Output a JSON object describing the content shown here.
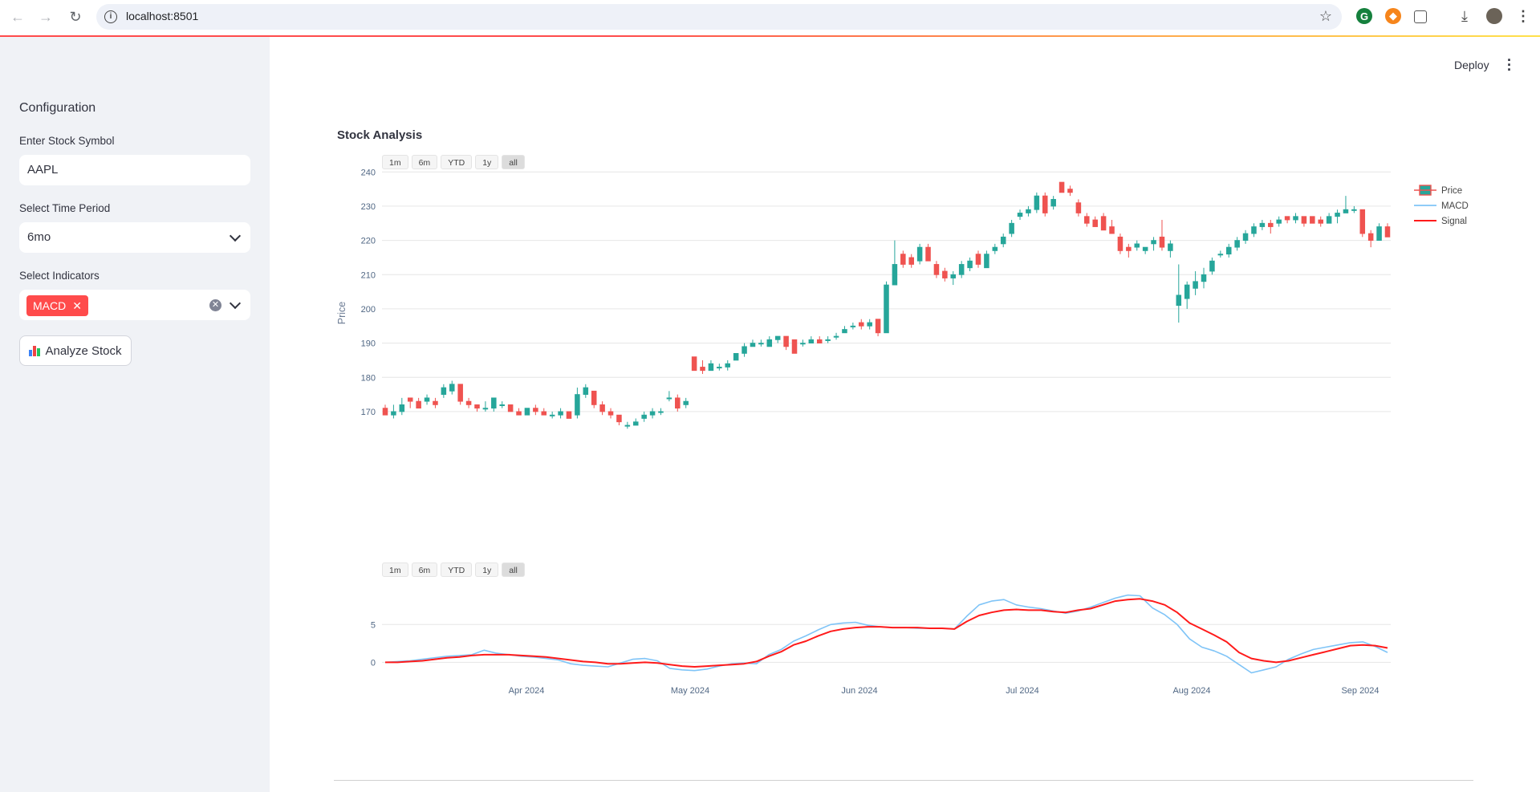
{
  "browser": {
    "url": "localhost:8501",
    "icons": [
      "back-icon",
      "forward-icon",
      "reload-icon",
      "info-icon",
      "star-icon",
      "grammarly-icon",
      "metamask-icon",
      "extensions-icon",
      "download-icon",
      "profile-avatar",
      "menu-icon"
    ]
  },
  "header": {
    "deploy_label": "Deploy"
  },
  "sidebar": {
    "title": "Configuration",
    "symbol_label": "Enter Stock Symbol",
    "symbol_value": "AAPL",
    "period_label": "Select Time Period",
    "period_value": "6mo",
    "indicators_label": "Select Indicators",
    "indicators_selected": [
      "MACD"
    ],
    "analyze_label": "Analyze Stock"
  },
  "main": {
    "title": "Stock Analysis"
  },
  "range_buttons": [
    "1m",
    "6m",
    "YTD",
    "1y",
    "all"
  ],
  "active_range": "all",
  "colors": {
    "accent": "#ff4b4b",
    "up": "#26a69a",
    "down": "#ef5350",
    "macd": "#7fc4f7",
    "signal": "#ff1a1a"
  },
  "chart_data": [
    {
      "type": "candlestick",
      "ylabel": "Price",
      "ylim": [
        166,
        241
      ],
      "yticks": [
        170,
        180,
        190,
        200,
        210,
        220,
        230,
        240
      ],
      "legend": [
        "Price",
        "MACD",
        "Signal"
      ],
      "legend_position": "top-right",
      "grid": true,
      "candles": [
        {
          "o": 171,
          "h": 172,
          "l": 169,
          "c": 169
        },
        {
          "o": 169,
          "h": 172,
          "l": 168,
          "c": 170
        },
        {
          "o": 170,
          "h": 174,
          "l": 169,
          "c": 172
        },
        {
          "o": 174,
          "h": 174,
          "l": 171,
          "c": 173
        },
        {
          "o": 173,
          "h": 174,
          "l": 171,
          "c": 171
        },
        {
          "o": 173,
          "h": 175,
          "l": 172,
          "c": 174
        },
        {
          "o": 173,
          "h": 174,
          "l": 171,
          "c": 172
        },
        {
          "o": 175,
          "h": 178,
          "l": 174,
          "c": 177
        },
        {
          "o": 176,
          "h": 179,
          "l": 175,
          "c": 178
        },
        {
          "o": 178,
          "h": 178,
          "l": 172,
          "c": 173
        },
        {
          "o": 173,
          "h": 174,
          "l": 171,
          "c": 172
        },
        {
          "o": 172,
          "h": 172,
          "l": 170,
          "c": 171
        },
        {
          "o": 171,
          "h": 173,
          "l": 170,
          "c": 171
        },
        {
          "o": 171,
          "h": 174,
          "l": 170,
          "c": 174
        },
        {
          "o": 172,
          "h": 173,
          "l": 171,
          "c": 172
        },
        {
          "o": 172,
          "h": 172,
          "l": 170,
          "c": 170
        },
        {
          "o": 170,
          "h": 171,
          "l": 169,
          "c": 169
        },
        {
          "o": 169,
          "h": 171,
          "l": 169,
          "c": 171
        },
        {
          "o": 171,
          "h": 172,
          "l": 169,
          "c": 170
        },
        {
          "o": 170,
          "h": 171,
          "l": 169,
          "c": 169
        },
        {
          "o": 169,
          "h": 170,
          "l": 168,
          "c": 169
        },
        {
          "o": 169,
          "h": 171,
          "l": 168,
          "c": 170
        },
        {
          "o": 170,
          "h": 170,
          "l": 168,
          "c": 168
        },
        {
          "o": 169,
          "h": 177,
          "l": 168,
          "c": 175
        },
        {
          "o": 175,
          "h": 178,
          "l": 174,
          "c": 177
        },
        {
          "o": 176,
          "h": 176,
          "l": 171,
          "c": 172
        },
        {
          "o": 172,
          "h": 173,
          "l": 169,
          "c": 170
        },
        {
          "o": 170,
          "h": 171,
          "l": 168,
          "c": 169
        },
        {
          "o": 169,
          "h": 169,
          "l": 166,
          "c": 167
        },
        {
          "o": 166,
          "h": 167,
          "l": 165,
          "c": 166
        },
        {
          "o": 166,
          "h": 168,
          "l": 166,
          "c": 167
        },
        {
          "o": 168,
          "h": 170,
          "l": 167,
          "c": 169
        },
        {
          "o": 169,
          "h": 171,
          "l": 168,
          "c": 170
        },
        {
          "o": 170,
          "h": 171,
          "l": 169,
          "c": 170
        },
        {
          "o": 174,
          "h": 176,
          "l": 173,
          "c": 174
        },
        {
          "o": 174,
          "h": 175,
          "l": 170,
          "c": 171
        },
        {
          "o": 172,
          "h": 174,
          "l": 171,
          "c": 173
        },
        {
          "o": 186,
          "h": 186,
          "l": 182,
          "c": 182
        },
        {
          "o": 183,
          "h": 185,
          "l": 181,
          "c": 182
        },
        {
          "o": 182,
          "h": 185,
          "l": 182,
          "c": 184
        },
        {
          "o": 183,
          "h": 184,
          "l": 182,
          "c": 183
        },
        {
          "o": 183,
          "h": 185,
          "l": 182,
          "c": 184
        },
        {
          "o": 185,
          "h": 187,
          "l": 185,
          "c": 187
        },
        {
          "o": 187,
          "h": 190,
          "l": 186,
          "c": 189
        },
        {
          "o": 189,
          "h": 191,
          "l": 189,
          "c": 190
        },
        {
          "o": 190,
          "h": 191,
          "l": 189,
          "c": 190
        },
        {
          "o": 189,
          "h": 192,
          "l": 189,
          "c": 191
        },
        {
          "o": 191,
          "h": 192,
          "l": 190,
          "c": 192
        },
        {
          "o": 192,
          "h": 192,
          "l": 188,
          "c": 189
        },
        {
          "o": 191,
          "h": 191,
          "l": 187,
          "c": 187
        },
        {
          "o": 190,
          "h": 191,
          "l": 189,
          "c": 190
        },
        {
          "o": 190,
          "h": 192,
          "l": 190,
          "c": 191
        },
        {
          "o": 191,
          "h": 192,
          "l": 190,
          "c": 190
        },
        {
          "o": 191,
          "h": 192,
          "l": 190,
          "c": 191
        },
        {
          "o": 192,
          "h": 193,
          "l": 191,
          "c": 192
        },
        {
          "o": 193,
          "h": 195,
          "l": 193,
          "c": 194
        },
        {
          "o": 195,
          "h": 196,
          "l": 194,
          "c": 195
        },
        {
          "o": 196,
          "h": 197,
          "l": 194,
          "c": 195
        },
        {
          "o": 195,
          "h": 197,
          "l": 194,
          "c": 196
        },
        {
          "o": 197,
          "h": 197,
          "l": 192,
          "c": 193
        },
        {
          "o": 193,
          "h": 208,
          "l": 193,
          "c": 207
        },
        {
          "o": 207,
          "h": 220,
          "l": 207,
          "c": 213
        },
        {
          "o": 216,
          "h": 217,
          "l": 212,
          "c": 213
        },
        {
          "o": 215,
          "h": 216,
          "l": 212,
          "c": 213
        },
        {
          "o": 214,
          "h": 219,
          "l": 213,
          "c": 218
        },
        {
          "o": 218,
          "h": 219,
          "l": 214,
          "c": 214
        },
        {
          "o": 213,
          "h": 214,
          "l": 209,
          "c": 210
        },
        {
          "o": 211,
          "h": 212,
          "l": 208,
          "c": 209
        },
        {
          "o": 209,
          "h": 211,
          "l": 207,
          "c": 210
        },
        {
          "o": 210,
          "h": 214,
          "l": 209,
          "c": 213
        },
        {
          "o": 212,
          "h": 215,
          "l": 211,
          "c": 214
        },
        {
          "o": 216,
          "h": 217,
          "l": 212,
          "c": 213
        },
        {
          "o": 212,
          "h": 217,
          "l": 212,
          "c": 216
        },
        {
          "o": 217,
          "h": 219,
          "l": 216,
          "c": 218
        },
        {
          "o": 219,
          "h": 222,
          "l": 218,
          "c": 221
        },
        {
          "o": 222,
          "h": 226,
          "l": 221,
          "c": 225
        },
        {
          "o": 227,
          "h": 229,
          "l": 226,
          "c": 228
        },
        {
          "o": 228,
          "h": 230,
          "l": 227,
          "c": 229
        },
        {
          "o": 229,
          "h": 234,
          "l": 228,
          "c": 233
        },
        {
          "o": 233,
          "h": 234,
          "l": 227,
          "c": 228
        },
        {
          "o": 230,
          "h": 233,
          "l": 229,
          "c": 232
        },
        {
          "o": 237,
          "h": 237,
          "l": 234,
          "c": 234
        },
        {
          "o": 235,
          "h": 236,
          "l": 233,
          "c": 234
        },
        {
          "o": 231,
          "h": 232,
          "l": 227,
          "c": 228
        },
        {
          "o": 227,
          "h": 228,
          "l": 224,
          "c": 225
        },
        {
          "o": 226,
          "h": 227,
          "l": 224,
          "c": 224
        },
        {
          "o": 227,
          "h": 228,
          "l": 223,
          "c": 223
        },
        {
          "o": 224,
          "h": 226,
          "l": 222,
          "c": 222
        },
        {
          "o": 221,
          "h": 222,
          "l": 216,
          "c": 217
        },
        {
          "o": 218,
          "h": 219,
          "l": 215,
          "c": 217
        },
        {
          "o": 218,
          "h": 220,
          "l": 217,
          "c": 219
        },
        {
          "o": 217,
          "h": 218,
          "l": 216,
          "c": 218
        },
        {
          "o": 219,
          "h": 221,
          "l": 217,
          "c": 220
        },
        {
          "o": 221,
          "h": 226,
          "l": 217,
          "c": 218
        },
        {
          "o": 217,
          "h": 220,
          "l": 215,
          "c": 219
        },
        {
          "o": 201,
          "h": 213,
          "l": 196,
          "c": 204
        },
        {
          "o": 203,
          "h": 208,
          "l": 200,
          "c": 207
        },
        {
          "o": 206,
          "h": 211,
          "l": 204,
          "c": 208
        },
        {
          "o": 208,
          "h": 212,
          "l": 206,
          "c": 210
        },
        {
          "o": 211,
          "h": 215,
          "l": 210,
          "c": 214
        },
        {
          "o": 216,
          "h": 217,
          "l": 215,
          "c": 216
        },
        {
          "o": 216,
          "h": 219,
          "l": 215,
          "c": 218
        },
        {
          "o": 218,
          "h": 221,
          "l": 217,
          "c": 220
        },
        {
          "o": 220,
          "h": 223,
          "l": 219,
          "c": 222
        },
        {
          "o": 222,
          "h": 225,
          "l": 221,
          "c": 224
        },
        {
          "o": 224,
          "h": 226,
          "l": 223,
          "c": 225
        },
        {
          "o": 225,
          "h": 226,
          "l": 222,
          "c": 224
        },
        {
          "o": 225,
          "h": 227,
          "l": 224,
          "c": 226
        },
        {
          "o": 227,
          "h": 227,
          "l": 225,
          "c": 226
        },
        {
          "o": 226,
          "h": 228,
          "l": 225,
          "c": 227
        },
        {
          "o": 227,
          "h": 227,
          "l": 224,
          "c": 225
        },
        {
          "o": 227,
          "h": 227,
          "l": 225,
          "c": 225
        },
        {
          "o": 226,
          "h": 227,
          "l": 224,
          "c": 225
        },
        {
          "o": 225,
          "h": 228,
          "l": 225,
          "c": 227
        },
        {
          "o": 227,
          "h": 229,
          "l": 225,
          "c": 228
        },
        {
          "o": 228,
          "h": 233,
          "l": 228,
          "c": 229
        },
        {
          "o": 229,
          "h": 230,
          "l": 228,
          "c": 229
        },
        {
          "o": 229,
          "h": 229,
          "l": 221,
          "c": 222
        },
        {
          "o": 222,
          "h": 223,
          "l": 218,
          "c": 220
        },
        {
          "o": 220,
          "h": 225,
          "l": 220,
          "c": 224
        },
        {
          "o": 224,
          "h": 225,
          "l": 221,
          "c": 221
        }
      ]
    },
    {
      "type": "line",
      "ylim": [
        -2.3,
        9.6
      ],
      "yticks": [
        0,
        5
      ],
      "xlabels": [
        "Apr 2024",
        "May 2024",
        "Jun 2024",
        "Jul 2024",
        "Aug 2024",
        "Sep 2024"
      ],
      "grid": true,
      "series": [
        {
          "name": "MACD",
          "values": [
            0,
            0.1,
            0.2,
            0.4,
            0.6,
            0.8,
            0.9,
            1,
            1.6,
            1.2,
            1,
            0.8,
            0.7,
            0.5,
            0.3,
            -0.2,
            -0.4,
            -0.5,
            -0.6,
            -0.1,
            0.4,
            0.5,
            0.2,
            -0.8,
            -1,
            -1.1,
            -0.9,
            -0.5,
            -0.2,
            -0.1,
            -0.2,
            1,
            1.7,
            2.8,
            3.5,
            4.3,
            5,
            5.2,
            5.3,
            4.9,
            4.7,
            4.6,
            4.6,
            4.5,
            4.5,
            4.5,
            4.4,
            6.1,
            7.6,
            8.1,
            8.3,
            7.6,
            7.3,
            7.1,
            6.8,
            6.5,
            6.8,
            7.3,
            7.9,
            8.5,
            8.9,
            8.8,
            7.2,
            6.3,
            5,
            3.1,
            2,
            1.5,
            0.8,
            -0.3,
            -1.4,
            -1,
            -0.6,
            0.4,
            1.1,
            1.7,
            2,
            2.3,
            2.6,
            2.7,
            2.1,
            1.3
          ]
        },
        {
          "name": "Signal",
          "values": [
            0,
            0,
            0.1,
            0.2,
            0.4,
            0.6,
            0.7,
            0.9,
            1,
            1,
            1,
            0.9,
            0.8,
            0.7,
            0.5,
            0.3,
            0.1,
            0,
            -0.2,
            -0.2,
            -0.1,
            0,
            -0.1,
            -0.3,
            -0.5,
            -0.6,
            -0.5,
            -0.4,
            -0.3,
            -0.2,
            0.1,
            0.8,
            1.4,
            2.3,
            2.8,
            3.5,
            4.1,
            4.4,
            4.6,
            4.7,
            4.7,
            4.6,
            4.6,
            4.6,
            4.5,
            4.5,
            4.4,
            5.4,
            6.2,
            6.6,
            6.9,
            7,
            6.9,
            6.9,
            6.7,
            6.6,
            6.9,
            7.1,
            7.6,
            8.1,
            8.3,
            8.4,
            8.1,
            7.6,
            6.6,
            5.2,
            4.4,
            3.6,
            2.7,
            1.3,
            0.5,
            0.2,
            0,
            0.2,
            0.6,
            1,
            1.4,
            1.8,
            2.2,
            2.3,
            2.2,
            1.9
          ]
        }
      ]
    }
  ]
}
